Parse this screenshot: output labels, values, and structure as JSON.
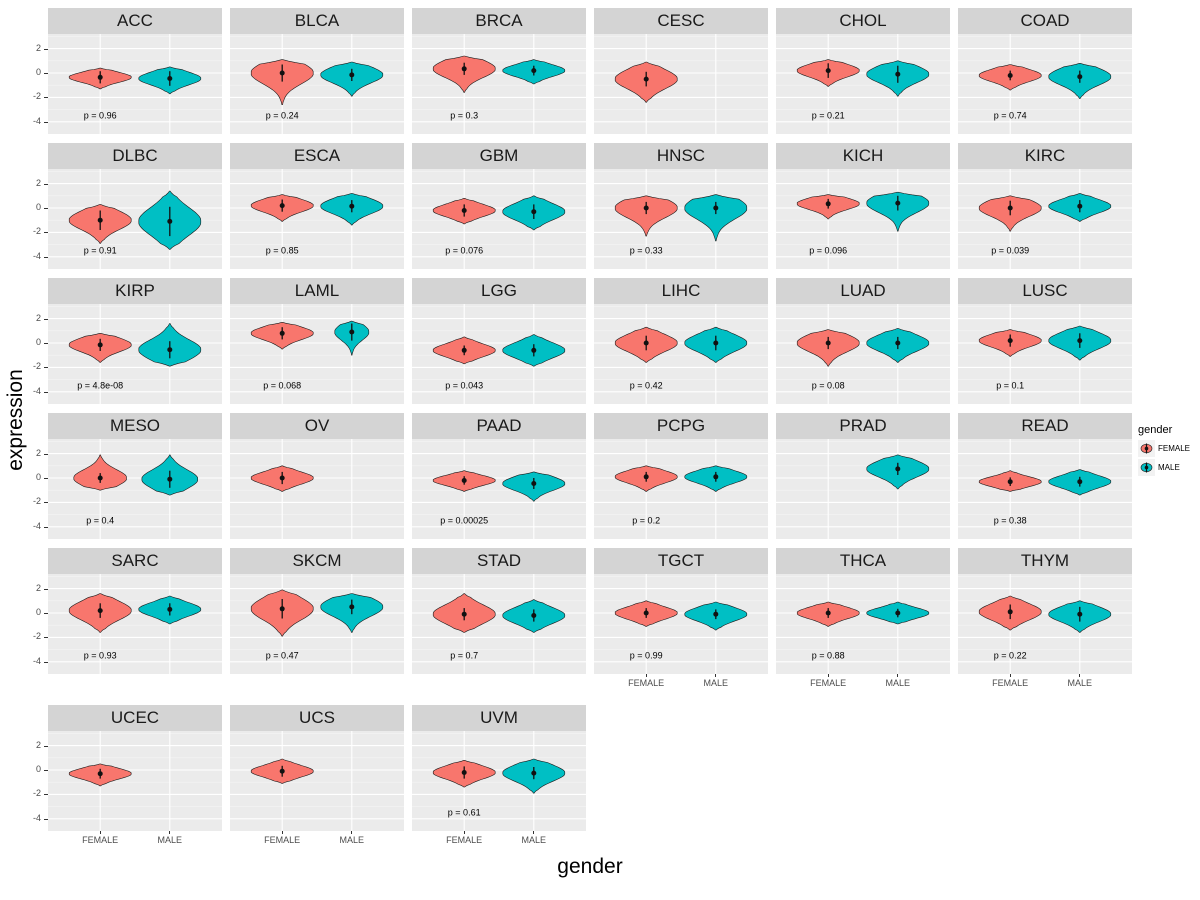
{
  "figure": {
    "x_title": "gender",
    "y_title": "expression",
    "y_ticks": [
      2,
      0,
      -2,
      -4
    ],
    "x_categories": [
      "FEMALE",
      "MALE"
    ],
    "legend": {
      "title": "gender",
      "items": [
        {
          "label": "FEMALE",
          "color": "#F8766D"
        },
        {
          "label": "MALE",
          "color": "#00BFC4"
        }
      ]
    }
  },
  "chart_data": {
    "type": "violin",
    "xlabel": "gender",
    "ylabel": "expression",
    "ylim": [
      -5,
      3.2
    ],
    "y_ticks": [
      2,
      0,
      -2,
      -4
    ],
    "categories": [
      "FEMALE",
      "MALE"
    ],
    "legend_position": "right",
    "facets": [
      {
        "name": "ACC",
        "p": "p = 0.96",
        "groups": [
          {
            "gender": "FEMALE",
            "median": -0.35,
            "min": -1.3,
            "max": 0.4,
            "err": 0.5
          },
          {
            "gender": "MALE",
            "median": -0.45,
            "min": -1.7,
            "max": 0.5,
            "err": 0.6
          }
        ]
      },
      {
        "name": "BLCA",
        "p": "p = 0.24",
        "groups": [
          {
            "gender": "FEMALE",
            "median": 0.0,
            "min": -2.6,
            "max": 1.1,
            "err": 0.7
          },
          {
            "gender": "MALE",
            "median": -0.15,
            "min": -1.9,
            "max": 0.9,
            "err": 0.5
          }
        ]
      },
      {
        "name": "BRCA",
        "p": "p = 0.3",
        "groups": [
          {
            "gender": "FEMALE",
            "median": 0.35,
            "min": -1.6,
            "max": 1.4,
            "err": 0.5
          },
          {
            "gender": "MALE",
            "median": 0.2,
            "min": -0.9,
            "max": 1.1,
            "err": 0.4
          }
        ]
      },
      {
        "name": "CESC",
        "p": null,
        "groups": [
          {
            "gender": "FEMALE",
            "median": -0.5,
            "min": -2.4,
            "max": 0.9,
            "err": 0.6
          }
        ]
      },
      {
        "name": "CHOL",
        "p": "p = 0.21",
        "groups": [
          {
            "gender": "FEMALE",
            "median": 0.2,
            "min": -1.1,
            "max": 1.1,
            "err": 0.6
          },
          {
            "gender": "MALE",
            "median": -0.1,
            "min": -1.9,
            "max": 1.0,
            "err": 0.7
          }
        ]
      },
      {
        "name": "COAD",
        "p": "p = 0.74",
        "groups": [
          {
            "gender": "FEMALE",
            "median": -0.2,
            "min": -1.4,
            "max": 0.7,
            "err": 0.4
          },
          {
            "gender": "MALE",
            "median": -0.3,
            "min": -2.1,
            "max": 0.8,
            "err": 0.5
          }
        ]
      },
      {
        "name": "DLBC",
        "p": "p = 0.91",
        "groups": [
          {
            "gender": "FEMALE",
            "median": -1.0,
            "min": -2.9,
            "max": 0.3,
            "err": 0.8
          },
          {
            "gender": "MALE",
            "median": -1.1,
            "min": -3.4,
            "max": 1.4,
            "err": 1.2
          }
        ]
      },
      {
        "name": "ESCA",
        "p": "p = 0.85",
        "groups": [
          {
            "gender": "FEMALE",
            "median": 0.2,
            "min": -1.1,
            "max": 1.1,
            "err": 0.5
          },
          {
            "gender": "MALE",
            "median": 0.15,
            "min": -1.4,
            "max": 1.2,
            "err": 0.5
          }
        ]
      },
      {
        "name": "GBM",
        "p": "p = 0.076",
        "groups": [
          {
            "gender": "FEMALE",
            "median": -0.2,
            "min": -1.3,
            "max": 0.8,
            "err": 0.5
          },
          {
            "gender": "MALE",
            "median": -0.3,
            "min": -1.8,
            "max": 1.0,
            "err": 0.6
          }
        ]
      },
      {
        "name": "HNSC",
        "p": "p = 0.33",
        "groups": [
          {
            "gender": "FEMALE",
            "median": 0.0,
            "min": -2.3,
            "max": 1.0,
            "err": 0.5
          },
          {
            "gender": "MALE",
            "median": 0.0,
            "min": -2.7,
            "max": 1.1,
            "err": 0.5
          }
        ]
      },
      {
        "name": "KICH",
        "p": "p = 0.096",
        "groups": [
          {
            "gender": "FEMALE",
            "median": 0.35,
            "min": -0.9,
            "max": 1.1,
            "err": 0.4
          },
          {
            "gender": "MALE",
            "median": 0.4,
            "min": -1.9,
            "max": 1.3,
            "err": 0.6
          }
        ]
      },
      {
        "name": "KIRC",
        "p": "p = 0.039",
        "groups": [
          {
            "gender": "FEMALE",
            "median": 0.0,
            "min": -1.9,
            "max": 1.0,
            "err": 0.6
          },
          {
            "gender": "MALE",
            "median": 0.15,
            "min": -1.1,
            "max": 1.2,
            "err": 0.5
          }
        ]
      },
      {
        "name": "KIRP",
        "p": "p = 4.8e-08",
        "groups": [
          {
            "gender": "FEMALE",
            "median": -0.15,
            "min": -1.6,
            "max": 0.8,
            "err": 0.5
          },
          {
            "gender": "MALE",
            "median": -0.55,
            "min": -1.9,
            "max": 1.6,
            "err": 0.7
          }
        ]
      },
      {
        "name": "LAML",
        "p": "p = 0.068",
        "groups": [
          {
            "gender": "FEMALE",
            "median": 0.8,
            "min": -0.5,
            "max": 1.7,
            "err": 0.5
          },
          {
            "gender": "MALE",
            "median": 0.9,
            "min": -1.0,
            "max": 1.8,
            "err": 0.7,
            "width": 0.55
          }
        ]
      },
      {
        "name": "LGG",
        "p": "p = 0.043",
        "groups": [
          {
            "gender": "FEMALE",
            "median": -0.6,
            "min": -1.7,
            "max": 0.5,
            "err": 0.4
          },
          {
            "gender": "MALE",
            "median": -0.6,
            "min": -1.9,
            "max": 0.7,
            "err": 0.5
          }
        ]
      },
      {
        "name": "LIHC",
        "p": "p = 0.42",
        "groups": [
          {
            "gender": "FEMALE",
            "median": 0.0,
            "min": -1.6,
            "max": 1.3,
            "err": 0.6
          },
          {
            "gender": "MALE",
            "median": 0.0,
            "min": -1.6,
            "max": 1.3,
            "err": 0.6
          }
        ]
      },
      {
        "name": "LUAD",
        "p": "p = 0.08",
        "groups": [
          {
            "gender": "FEMALE",
            "median": 0.0,
            "min": -1.9,
            "max": 1.1,
            "err": 0.5
          },
          {
            "gender": "MALE",
            "median": 0.0,
            "min": -1.6,
            "max": 1.2,
            "err": 0.5
          }
        ]
      },
      {
        "name": "LUSC",
        "p": "p = 0.1",
        "groups": [
          {
            "gender": "FEMALE",
            "median": 0.2,
            "min": -1.1,
            "max": 1.1,
            "err": 0.5
          },
          {
            "gender": "MALE",
            "median": 0.2,
            "min": -1.4,
            "max": 1.4,
            "err": 0.6
          }
        ]
      },
      {
        "name": "MESO",
        "p": "p = 0.4",
        "groups": [
          {
            "gender": "FEMALE",
            "median": 0.0,
            "min": -1.0,
            "max": 1.9,
            "err": 0.4,
            "width": 0.85
          },
          {
            "gender": "MALE",
            "median": -0.1,
            "min": -1.4,
            "max": 1.9,
            "err": 0.7,
            "width": 0.9
          }
        ]
      },
      {
        "name": "OV",
        "p": null,
        "groups": [
          {
            "gender": "FEMALE",
            "median": 0.0,
            "min": -1.1,
            "max": 1.0,
            "err": 0.5
          }
        ]
      },
      {
        "name": "PAAD",
        "p": "p = 0.00025",
        "groups": [
          {
            "gender": "FEMALE",
            "median": -0.2,
            "min": -1.1,
            "max": 0.6,
            "err": 0.35
          },
          {
            "gender": "MALE",
            "median": -0.45,
            "min": -1.9,
            "max": 0.5,
            "err": 0.45
          }
        ]
      },
      {
        "name": "PCPG",
        "p": "p = 0.2",
        "groups": [
          {
            "gender": "FEMALE",
            "median": 0.1,
            "min": -1.1,
            "max": 1.0,
            "err": 0.4
          },
          {
            "gender": "MALE",
            "median": 0.1,
            "min": -1.1,
            "max": 1.0,
            "err": 0.4
          }
        ]
      },
      {
        "name": "PRAD",
        "p": null,
        "groups": [
          {
            "gender": "MALE",
            "median": 0.75,
            "min": -0.9,
            "max": 1.9,
            "err": 0.5
          }
        ]
      },
      {
        "name": "READ",
        "p": "p = 0.38",
        "groups": [
          {
            "gender": "FEMALE",
            "median": -0.3,
            "min": -1.1,
            "max": 0.6,
            "err": 0.35
          },
          {
            "gender": "MALE",
            "median": -0.3,
            "min": -1.4,
            "max": 0.7,
            "err": 0.4
          }
        ]
      },
      {
        "name": "SARC",
        "p": "p = 0.93",
        "groups": [
          {
            "gender": "FEMALE",
            "median": 0.2,
            "min": -1.6,
            "max": 1.6,
            "err": 0.6
          },
          {
            "gender": "MALE",
            "median": 0.3,
            "min": -0.9,
            "max": 1.4,
            "err": 0.5
          }
        ]
      },
      {
        "name": "SKCM",
        "p": "p = 0.47",
        "groups": [
          {
            "gender": "FEMALE",
            "median": 0.35,
            "min": -1.9,
            "max": 1.9,
            "err": 0.8
          },
          {
            "gender": "MALE",
            "median": 0.5,
            "min": -1.6,
            "max": 1.6,
            "err": 0.6
          }
        ]
      },
      {
        "name": "STAD",
        "p": "p = 0.7",
        "groups": [
          {
            "gender": "FEMALE",
            "median": -0.1,
            "min": -1.6,
            "max": 1.6,
            "err": 0.5
          },
          {
            "gender": "MALE",
            "median": -0.2,
            "min": -1.6,
            "max": 1.1,
            "err": 0.5
          }
        ]
      },
      {
        "name": "TGCT",
        "p": "p = 0.99",
        "groups": [
          {
            "gender": "FEMALE",
            "median": 0.0,
            "min": -1.1,
            "max": 1.0,
            "err": 0.4
          },
          {
            "gender": "MALE",
            "median": -0.1,
            "min": -1.4,
            "max": 0.9,
            "err": 0.4
          }
        ]
      },
      {
        "name": "THCA",
        "p": "p = 0.88",
        "groups": [
          {
            "gender": "FEMALE",
            "median": 0.0,
            "min": -1.1,
            "max": 0.9,
            "err": 0.4
          },
          {
            "gender": "MALE",
            "median": 0.0,
            "min": -0.9,
            "max": 0.9,
            "err": 0.35
          }
        ]
      },
      {
        "name": "THYM",
        "p": "p = 0.22",
        "groups": [
          {
            "gender": "FEMALE",
            "median": 0.1,
            "min": -1.4,
            "max": 1.4,
            "err": 0.6
          },
          {
            "gender": "MALE",
            "median": -0.1,
            "min": -1.6,
            "max": 1.0,
            "err": 0.6
          }
        ]
      },
      {
        "name": "UCEC",
        "p": null,
        "groups": [
          {
            "gender": "FEMALE",
            "median": -0.3,
            "min": -1.3,
            "max": 0.5,
            "err": 0.4
          }
        ]
      },
      {
        "name": "UCS",
        "p": null,
        "groups": [
          {
            "gender": "FEMALE",
            "median": -0.1,
            "min": -1.1,
            "max": 0.9,
            "err": 0.45
          }
        ]
      },
      {
        "name": "UVM",
        "p": "p = 0.61",
        "groups": [
          {
            "gender": "FEMALE",
            "median": -0.2,
            "min": -1.4,
            "max": 0.8,
            "err": 0.5
          },
          {
            "gender": "MALE",
            "median": -0.25,
            "min": -1.9,
            "max": 0.9,
            "err": 0.5
          }
        ]
      }
    ]
  }
}
